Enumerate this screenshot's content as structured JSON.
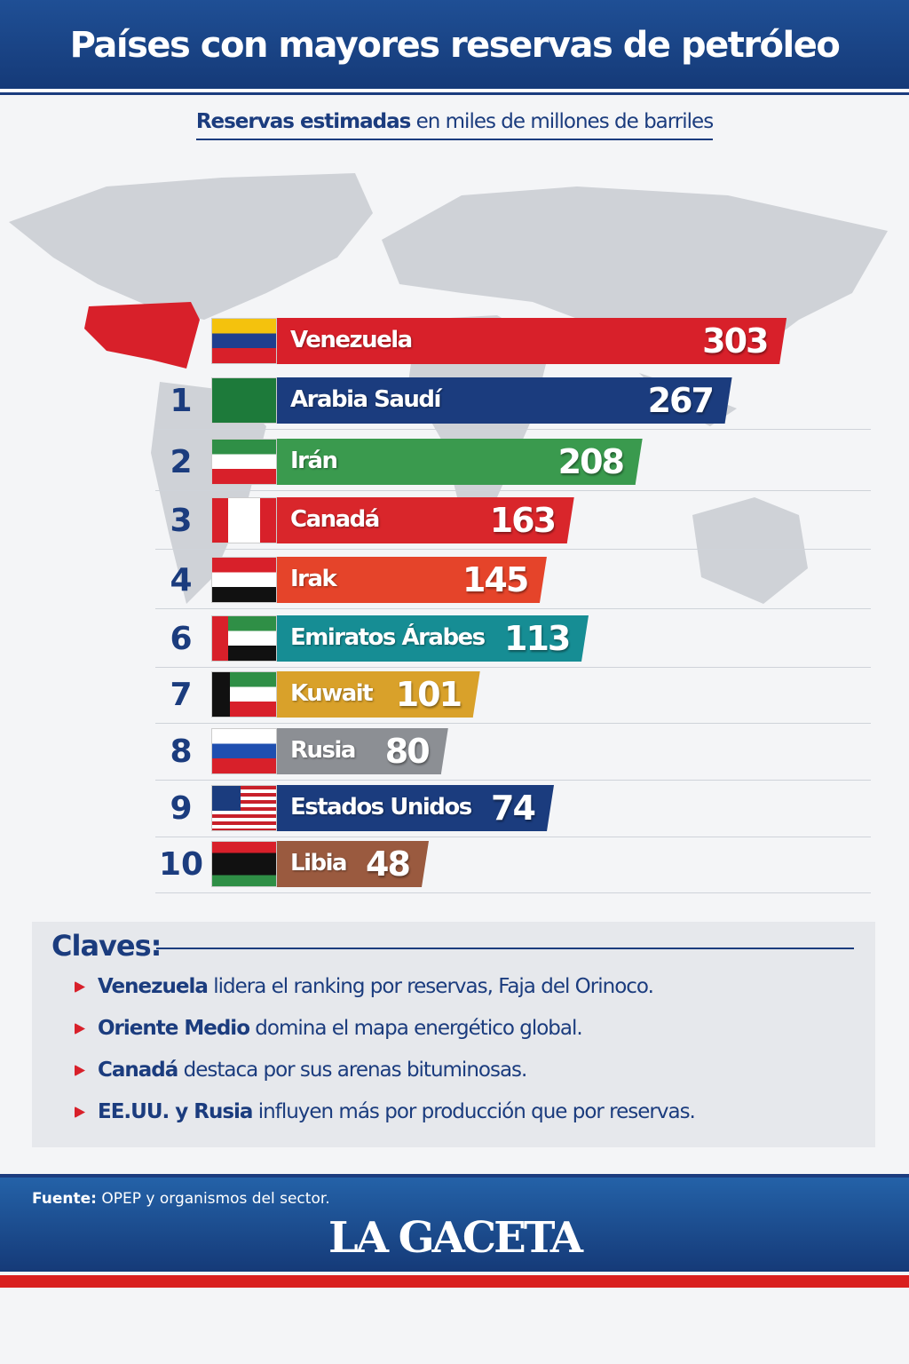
{
  "header": {
    "title": "Países con mayores reservas de petróleo"
  },
  "subtitle": {
    "bold": "Reservas estimadas",
    "rest": " en miles de millones de barriles"
  },
  "chart_data": {
    "type": "bar",
    "orientation": "horizontal",
    "title": "Países con mayores reservas de petróleo",
    "subtitle": "Reservas estimadas en miles de millones de barriles",
    "categories": [
      "Venezuela",
      "Arabia Saudí",
      "Irán",
      "Canadá",
      "Irak",
      "Emiratos Árabes",
      "Kuwait",
      "Rusia",
      "Estados Unidos",
      "Libia"
    ],
    "ranks": [
      "",
      "1",
      "2",
      "3",
      "4",
      "6",
      "7",
      "8",
      "9",
      "10"
    ],
    "values": [
      303,
      267,
      208,
      163,
      145,
      113,
      101,
      80,
      74,
      48
    ],
    "colors": [
      "#d8202a",
      "#1b3c7e",
      "#3a9a4e",
      "#d9262b",
      "#e5442a",
      "#168d94",
      "#d9a12a",
      "#8c8f94",
      "#1b3c7e",
      "#9a5a3f"
    ],
    "flags": [
      "venezuela",
      "saudi-arabia",
      "iran",
      "canada",
      "iraq",
      "uae",
      "kuwait",
      "russia",
      "usa",
      "libya"
    ]
  },
  "keys": {
    "title": "Claves:",
    "items": [
      {
        "bold": "Venezuela",
        "text": " lidera el ranking por reservas, Faja del Orinoco."
      },
      {
        "bold": "Oriente Medio",
        "text": " domina el mapa energético global."
      },
      {
        "bold": "Canadá",
        "text": " destaca por sus arenas bituminosas."
      },
      {
        "bold": "EE.UU. y Rusia",
        "text": " influyen más por producción que por reservas."
      }
    ]
  },
  "footer": {
    "source_label": "Fuente:",
    "source": " OPEP y organismos del sector.",
    "logo": "LA GACETA"
  }
}
